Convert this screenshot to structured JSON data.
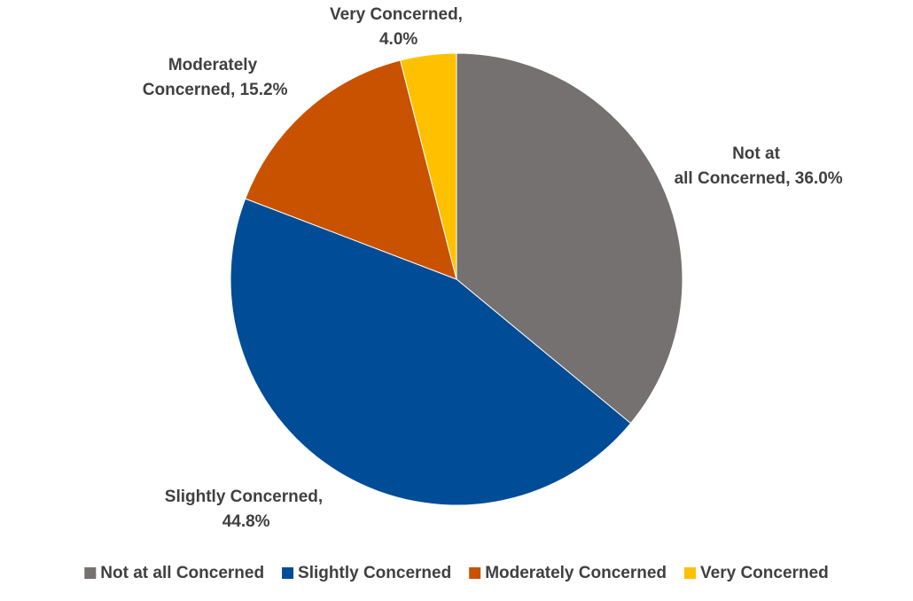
{
  "chart_data": {
    "type": "pie",
    "categories": [
      "Not at all Concerned",
      "Slightly Concerned",
      "Moderately Concerned",
      "Very Concerned"
    ],
    "values": [
      36.0,
      44.8,
      15.2,
      4.0
    ],
    "value_labels": [
      "Not at all Concerned, 36.0%",
      "Slightly Concerned, 44.8%",
      "Moderately Concerned, 15.2%",
      "Very Concerned, 4.0%"
    ],
    "colors": [
      "#767171",
      "#004c97",
      "#c85200",
      "#ffc000"
    ],
    "legend": "bottom"
  }
}
